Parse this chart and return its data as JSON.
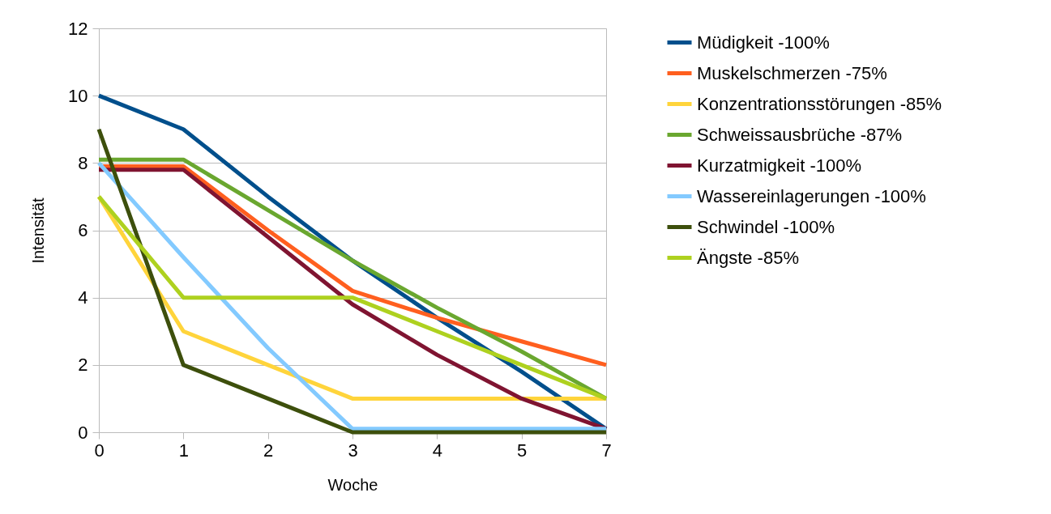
{
  "chart_data": {
    "type": "line",
    "xlabel": "Woche",
    "ylabel": "Intensität",
    "categories": [
      "0",
      "1",
      "2",
      "3",
      "4",
      "5",
      "7"
    ],
    "ylim": [
      0,
      12
    ],
    "yticks": [
      0,
      2,
      4,
      6,
      8,
      10,
      12
    ],
    "grid": "y",
    "legend": "right",
    "line_style": "solid",
    "series": [
      {
        "name": "Müdigkeit -100%",
        "color": "#004f8c",
        "values": [
          10,
          9,
          7,
          5.1,
          3.4,
          1.8,
          0.1
        ]
      },
      {
        "name": "Muskelschmerzen -75%",
        "color": "#ff5f1f",
        "values": [
          7.9,
          7.9,
          6,
          4.2,
          3.4,
          2.7,
          2
        ]
      },
      {
        "name": "Konzentrationsstörungen -85%",
        "color": "#ffd43b",
        "values": [
          7,
          3,
          2,
          1,
          1,
          1,
          1
        ]
      },
      {
        "name": "Schweissausbrüche -87%",
        "color": "#6aa72f",
        "values": [
          8.1,
          8.1,
          6.6,
          5.1,
          3.7,
          2.4,
          1
        ]
      },
      {
        "name": "Kurzatmigkeit -100%",
        "color": "#7f1431",
        "values": [
          7.8,
          7.8,
          5.8,
          3.8,
          2.3,
          1,
          0.1
        ]
      },
      {
        "name": "Wassereinlagerungen -100%",
        "color": "#83caff",
        "values": [
          8,
          5.2,
          2.5,
          0.1,
          0.1,
          0.1,
          0.1
        ]
      },
      {
        "name": "Schwindel -100%",
        "color": "#3d4f0c",
        "values": [
          9,
          2,
          1,
          0,
          0,
          0,
          0
        ]
      },
      {
        "name": "Ängste -85%",
        "color": "#aed11f",
        "values": [
          7,
          4,
          4,
          4,
          3,
          2,
          1
        ]
      }
    ]
  }
}
